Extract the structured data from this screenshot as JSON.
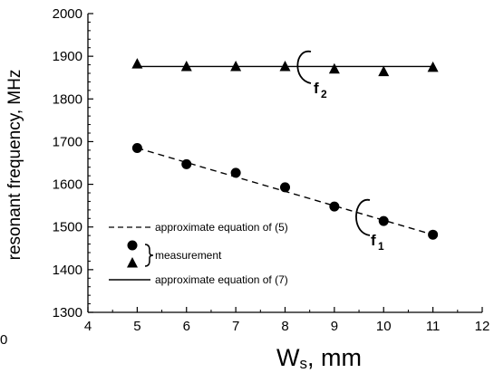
{
  "chart_data": {
    "type": "scatter",
    "xlabel": "W",
    "xlabel_sub": "s",
    "xlabel_unit": ", mm",
    "ylabel": "resonant frequency, MHz",
    "xlim": [
      4,
      12
    ],
    "ylim": [
      1300,
      2000
    ],
    "x_ticks": [
      "4",
      "5",
      "6",
      "7",
      "8",
      "9",
      "10",
      "11",
      "12"
    ],
    "y_ticks": [
      "1300",
      "1400",
      "1500",
      "1600",
      "1700",
      "1800",
      "1900",
      "2000"
    ],
    "grid": false,
    "stray_label": "0",
    "series": [
      {
        "name": "approximate equation of (5)",
        "kind": "line",
        "style": "dashed",
        "x": [
          5,
          11
        ],
        "y": [
          1685,
          1482
        ]
      },
      {
        "name": "measurement",
        "kind": "scatter",
        "marker": "circle",
        "x": [
          5,
          6,
          7,
          8,
          9,
          10,
          11
        ],
        "y": [
          1685,
          1647,
          1627,
          1593,
          1548,
          1514,
          1482
        ]
      },
      {
        "name": "measurement",
        "kind": "scatter",
        "marker": "triangle",
        "x": [
          5,
          6,
          7,
          8,
          9,
          10,
          11
        ],
        "y": [
          1882,
          1876,
          1876,
          1876,
          1870,
          1864,
          1874
        ]
      },
      {
        "name": "approximate equation of (7)",
        "kind": "line",
        "style": "solid",
        "x": [
          5,
          11
        ],
        "y": [
          1876,
          1876
        ]
      }
    ],
    "legend": {
      "placement": "bottom-left",
      "entries": [
        {
          "label": "approximate equation of (5)",
          "symbol": "dashed-line"
        },
        {
          "label": "measurement",
          "symbol": "circle-triangle-brace"
        },
        {
          "label": "approximate equation of (7)",
          "symbol": "solid-line"
        }
      ]
    },
    "annotations": [
      {
        "text": "f",
        "sub": "2",
        "target": "upper curve"
      },
      {
        "text": "f",
        "sub": "1",
        "target": "lower curve"
      }
    ]
  }
}
